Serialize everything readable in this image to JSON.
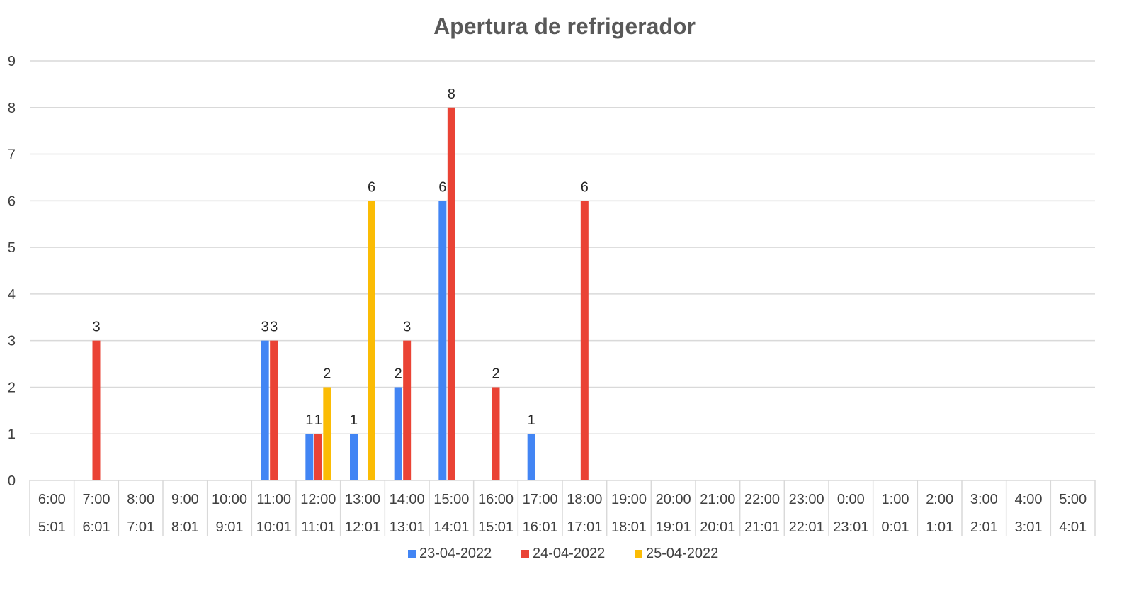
{
  "chart_data": {
    "type": "bar",
    "title": "Apertura de refrigerador",
    "ylim": [
      0,
      9
    ],
    "yticks": [
      0,
      1,
      2,
      3,
      4,
      5,
      6,
      7,
      8,
      9
    ],
    "grid": true,
    "legend_position": "bottom",
    "categories": [
      [
        "6:00",
        "5:01"
      ],
      [
        "7:00",
        "6:01"
      ],
      [
        "8:00",
        "7:01"
      ],
      [
        "9:00",
        "8:01"
      ],
      [
        "10:00",
        "9:01"
      ],
      [
        "11:00",
        "10:01"
      ],
      [
        "12:00",
        "11:01"
      ],
      [
        "13:00",
        "12:01"
      ],
      [
        "14:00",
        "13:01"
      ],
      [
        "15:00",
        "14:01"
      ],
      [
        "16:00",
        "15:01"
      ],
      [
        "17:00",
        "16:01"
      ],
      [
        "18:00",
        "17:01"
      ],
      [
        "19:00",
        "18:01"
      ],
      [
        "20:00",
        "19:01"
      ],
      [
        "21:00",
        "20:01"
      ],
      [
        "22:00",
        "21:01"
      ],
      [
        "23:00",
        "22:01"
      ],
      [
        "0:00",
        "23:01"
      ],
      [
        "1:00",
        "0:01"
      ],
      [
        "2:00",
        "1:01"
      ],
      [
        "3:00",
        "2:01"
      ],
      [
        "4:00",
        "3:01"
      ],
      [
        "5:00",
        "4:01"
      ]
    ],
    "series": [
      {
        "name": "23-04-2022",
        "color": "#4285f4",
        "values": [
          null,
          null,
          null,
          null,
          null,
          3,
          1,
          1,
          2,
          6,
          null,
          1,
          null,
          null,
          null,
          null,
          null,
          null,
          null,
          null,
          null,
          null,
          null,
          null
        ]
      },
      {
        "name": "24-04-2022",
        "color": "#ea4335",
        "values": [
          null,
          3,
          null,
          null,
          null,
          3,
          1,
          null,
          3,
          8,
          2,
          null,
          6,
          null,
          null,
          null,
          null,
          null,
          null,
          null,
          null,
          null,
          null,
          null
        ]
      },
      {
        "name": "25-04-2022",
        "color": "#fbbc04",
        "values": [
          null,
          null,
          null,
          null,
          null,
          null,
          2,
          6,
          null,
          null,
          null,
          null,
          null,
          null,
          null,
          null,
          null,
          null,
          null,
          null,
          null,
          null,
          null,
          null
        ]
      }
    ]
  }
}
